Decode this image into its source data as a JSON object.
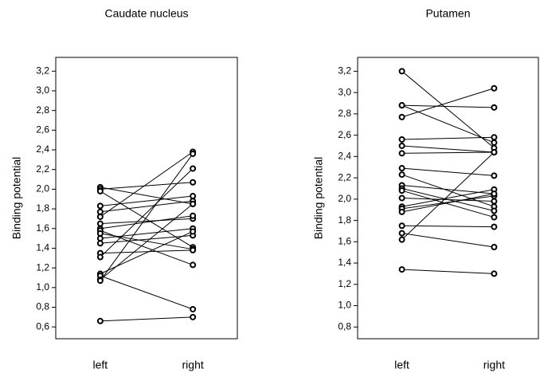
{
  "chart_data": [
    {
      "type": "line",
      "title": "Caudate nucleus",
      "y_label": "Binding potential",
      "categories": [
        "left",
        "right"
      ],
      "color": "#000000",
      "ylim": [
        0.48,
        3.34
      ],
      "yticks": [
        {
          "value": 0.6,
          "label": "0,6"
        },
        {
          "value": 0.8,
          "label": "0,8"
        },
        {
          "value": 1.0,
          "label": "1,0"
        },
        {
          "value": 1.2,
          "label": "1,2"
        },
        {
          "value": 1.4,
          "label": "1,4"
        },
        {
          "value": 1.6,
          "label": "1,6"
        },
        {
          "value": 1.8,
          "label": "1,8"
        },
        {
          "value": 2.0,
          "label": "2,0"
        },
        {
          "value": 2.2,
          "label": "2,2"
        },
        {
          "value": 2.4,
          "label": "2,4"
        },
        {
          "value": 2.6,
          "label": "2,6"
        },
        {
          "value": 2.8,
          "label": "2,8"
        },
        {
          "value": 3.0,
          "label": "3,0"
        },
        {
          "value": 3.2,
          "label": "3,2"
        }
      ],
      "series": [
        {
          "values": [
            2.02,
            1.85
          ]
        },
        {
          "values": [
            2.0,
            2.07
          ]
        },
        {
          "values": [
            1.98,
            1.41
          ]
        },
        {
          "values": [
            1.83,
            1.93
          ]
        },
        {
          "values": [
            1.77,
            1.88
          ]
        },
        {
          "values": [
            1.72,
            2.38
          ]
        },
        {
          "values": [
            1.65,
            1.7
          ]
        },
        {
          "values": [
            1.6,
            1.73
          ]
        },
        {
          "values": [
            1.58,
            1.23
          ]
        },
        {
          "values": [
            1.55,
            1.39
          ]
        },
        {
          "values": [
            1.5,
            1.6
          ]
        },
        {
          "values": [
            1.45,
            1.53
          ]
        },
        {
          "values": [
            1.35,
            1.38
          ]
        },
        {
          "values": [
            1.31,
            2.21
          ]
        },
        {
          "values": [
            1.14,
            1.57
          ]
        },
        {
          "values": [
            1.12,
            0.78
          ]
        },
        {
          "values": [
            1.08,
            1.85
          ]
        },
        {
          "values": [
            1.07,
            2.36
          ]
        },
        {
          "values": [
            0.66,
            0.7
          ]
        }
      ]
    },
    {
      "type": "line",
      "title": "Putamen",
      "y_label": "Binding potential",
      "categories": [
        "left",
        "right"
      ],
      "color": "#000000",
      "ylim": [
        0.69,
        3.33
      ],
      "yticks": [
        {
          "value": 0.8,
          "label": "0,8"
        },
        {
          "value": 1.0,
          "label": "1,0"
        },
        {
          "value": 1.2,
          "label": "1,2"
        },
        {
          "value": 1.4,
          "label": "1,4"
        },
        {
          "value": 1.6,
          "label": "1,6"
        },
        {
          "value": 1.8,
          "label": "1,8"
        },
        {
          "value": 2.0,
          "label": "2,0"
        },
        {
          "value": 2.2,
          "label": "2,2"
        },
        {
          "value": 2.4,
          "label": "2,4"
        },
        {
          "value": 2.6,
          "label": "2,6"
        },
        {
          "value": 2.8,
          "label": "2,8"
        },
        {
          "value": 3.0,
          "label": "3,0"
        },
        {
          "value": 3.2,
          "label": "3,2"
        }
      ],
      "series": [
        {
          "values": [
            3.2,
            2.48
          ]
        },
        {
          "values": [
            2.88,
            2.86
          ]
        },
        {
          "values": [
            2.88,
            2.53
          ]
        },
        {
          "values": [
            2.77,
            3.04
          ]
        },
        {
          "values": [
            2.56,
            2.58
          ]
        },
        {
          "values": [
            2.5,
            2.44
          ]
        },
        {
          "values": [
            2.43,
            2.44
          ]
        },
        {
          "values": [
            2.29,
            2.22
          ]
        },
        {
          "values": [
            2.23,
            1.93
          ]
        },
        {
          "values": [
            2.13,
            2.05
          ]
        },
        {
          "values": [
            2.1,
            1.89
          ]
        },
        {
          "values": [
            2.08,
            1.83
          ]
        },
        {
          "values": [
            2.01,
            1.98
          ]
        },
        {
          "values": [
            1.93,
            2.09
          ]
        },
        {
          "values": [
            1.91,
            2.03
          ]
        },
        {
          "values": [
            1.88,
            2.05
          ]
        },
        {
          "values": [
            1.75,
            1.74
          ]
        },
        {
          "values": [
            1.68,
            1.55
          ]
        },
        {
          "values": [
            1.62,
            2.44
          ]
        },
        {
          "values": [
            1.34,
            1.3
          ]
        }
      ]
    }
  ]
}
